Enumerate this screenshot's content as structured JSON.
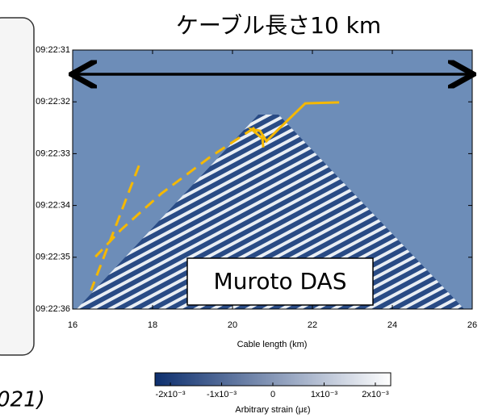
{
  "chart_data": {
    "type": "waterfall",
    "title": "ケーブル長さ10 km",
    "annotation": "Muroto DAS",
    "citation_fragment": "021)",
    "xlabel": "Cable length (km)",
    "xlim": [
      16,
      26
    ],
    "xticks": [
      16,
      18,
      20,
      22,
      24,
      26
    ],
    "ylim": [
      33751,
      33756
    ],
    "y_inverted": true,
    "yticks": [
      {
        "value": 33751,
        "label": "09:22:31"
      },
      {
        "value": 33752,
        "label": "09:22:32"
      },
      {
        "value": 33753,
        "label": "09:22:33"
      },
      {
        "value": 33754,
        "label": "09:22:34"
      },
      {
        "value": 33755,
        "label": "09:22:35"
      },
      {
        "value": 33756,
        "label": "09:22:36"
      }
    ],
    "series": [
      {
        "color": "#f5b800",
        "dashed": false,
        "x": [
          22.67,
          21.82,
          21.15,
          20.85,
          20.69,
          20.48,
          20.75,
          20.77
        ],
        "values": [
          33752.01,
          33752.03,
          33752.53,
          33752.76,
          33752.56,
          33752.53,
          33752.71,
          33752.88
        ]
      },
      {
        "color": "#f5b800",
        "dashed": true,
        "x": [
          17.66,
          16.46
        ],
        "values": [
          33753.23,
          33755.64
        ]
      },
      {
        "color": "#f5b800",
        "dashed": true,
        "x": [
          20.55,
          19.43,
          18.22,
          17.21,
          16.57
        ],
        "values": [
          33752.5,
          33753.07,
          33753.77,
          33754.47,
          33754.99
        ]
      }
    ],
    "colorbar": {
      "label": "Arbitrary strain (με)",
      "lim": [
        -0.0023,
        0.0023
      ],
      "colors": [
        "#0d2f6e",
        "#ffffff"
      ],
      "ticks": [
        {
          "value": -0.002,
          "label": "-2x10⁻³"
        },
        {
          "value": -0.001,
          "label": "-1x10⁻³"
        },
        0,
        {
          "value": 0.001,
          "label": "1x10⁻³"
        },
        {
          "value": 0.002,
          "label": "2x10⁻³"
        }
      ]
    }
  }
}
